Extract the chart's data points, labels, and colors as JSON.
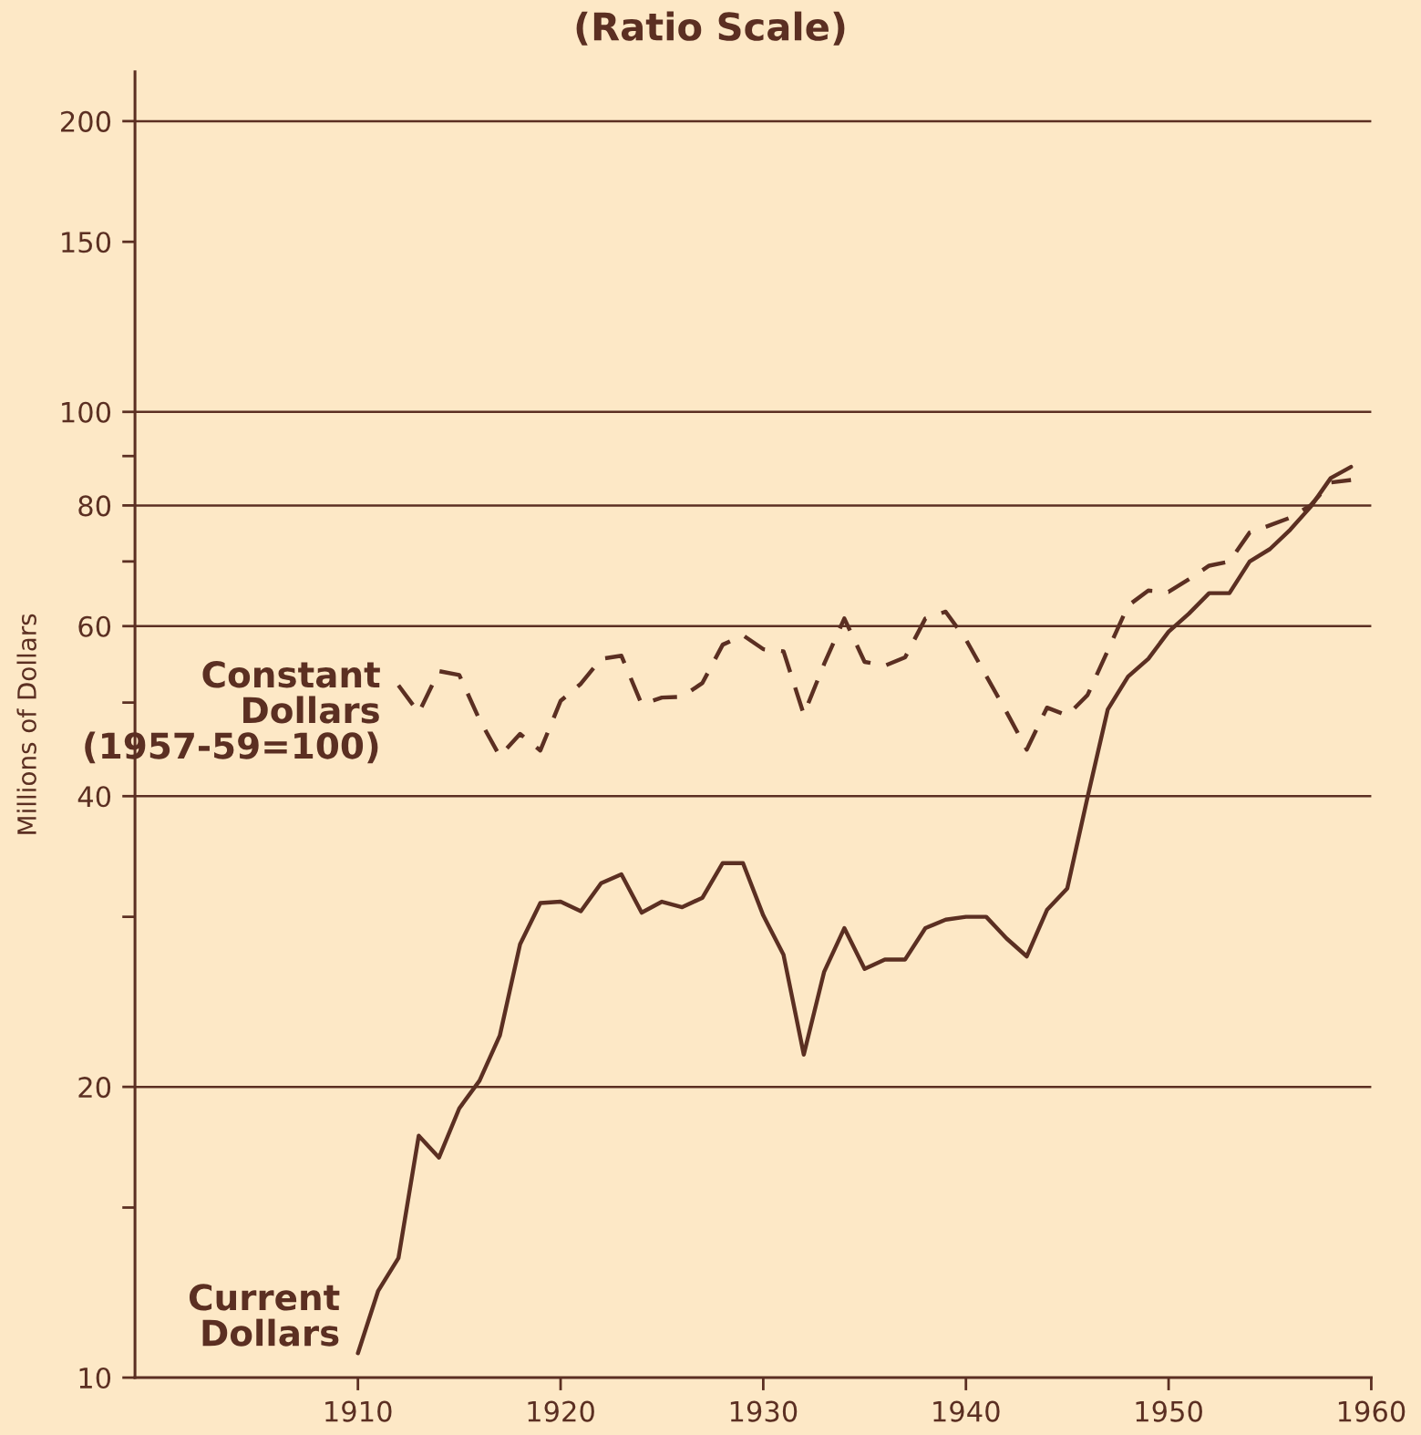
{
  "chart_data": {
    "type": "line",
    "title": "(Ratio Scale)",
    "ylabel": "Millions of Dollars",
    "log": "y",
    "xlim": [
      1899,
      1960
    ],
    "xticks": [
      1910,
      1920,
      1930,
      1940,
      1950,
      1960
    ],
    "ylim": [
      10,
      225
    ],
    "yticks": [
      10,
      {
        "value": 15,
        "label": null
      },
      20,
      {
        "value": 30,
        "label": null
      },
      40,
      {
        "value": 50,
        "label": null
      },
      60,
      {
        "value": 70,
        "label": null
      },
      80,
      {
        "value": 90,
        "label": null
      },
      100,
      150,
      200
    ],
    "ref_lines": [
      {
        "axis": "y",
        "value": 20,
        "color": "#5b2f22"
      },
      {
        "axis": "y",
        "value": 40,
        "color": "#5b2f22"
      },
      {
        "axis": "y",
        "value": 60,
        "color": "#5b2f22"
      },
      {
        "axis": "y",
        "value": 80,
        "color": "#5b2f22"
      },
      {
        "axis": "y",
        "value": 100,
        "color": "#5b2f22"
      },
      {
        "axis": "y",
        "value": 200,
        "color": "#5b2f22"
      }
    ],
    "grid": false,
    "legend": false,
    "marker": "none",
    "series": [
      {
        "name": "Constant\nDollars\n(1957-59=100)",
        "color": "#5b2f22",
        "line_style": "dashed",
        "x": [
          1912,
          1913,
          1914,
          1915,
          1916,
          1917,
          1918,
          1919,
          1920,
          1921,
          1922,
          1923,
          1924,
          1925,
          1926,
          1927,
          1928,
          1929,
          1930,
          1931,
          1932,
          1933,
          1934,
          1935,
          1936,
          1937,
          1938,
          1939,
          1940,
          1941,
          1942,
          1943,
          1944,
          1945,
          1946,
          1947,
          1948,
          1949,
          1950,
          1951,
          1952,
          1953,
          1954,
          1955,
          1956,
          1957,
          1958,
          1959
        ],
        "values": [
          52.1,
          48.8,
          53.9,
          53.4,
          48.0,
          44.0,
          46.4,
          44.6,
          50.2,
          52.3,
          55.5,
          55.9,
          49.8,
          50.6,
          50.7,
          52.4,
          57.4,
          58.7,
          56.8,
          56.5,
          48.6,
          54.8,
          61.1,
          55.1,
          54.6,
          55.7,
          61.1,
          62.1,
          58.1,
          53.3,
          48.9,
          44.7,
          49.4,
          48.5,
          50.9,
          56.6,
          63.0,
          65.3,
          65.1,
          67.1,
          69.3,
          70.0,
          75.0,
          76.3,
          77.7,
          80.0,
          84.5,
          85.0
        ]
      },
      {
        "name": "Current\nDollars",
        "color": "#5b2f22",
        "line_style": "solid",
        "x": [
          1910,
          1911,
          1912,
          1913,
          1914,
          1915,
          1916,
          1917,
          1918,
          1919,
          1920,
          1921,
          1922,
          1923,
          1924,
          1925,
          1926,
          1927,
          1928,
          1929,
          1930,
          1931,
          1932,
          1933,
          1934,
          1935,
          1936,
          1937,
          1938,
          1939,
          1940,
          1941,
          1942,
          1943,
          1944,
          1945,
          1946,
          1947,
          1948,
          1949,
          1950,
          1951,
          1952,
          1953,
          1954,
          1955,
          1956,
          1957,
          1958,
          1959
        ],
        "values": [
          10.6,
          12.3,
          13.3,
          17.8,
          16.9,
          19.0,
          20.3,
          22.6,
          28.1,
          31.0,
          31.1,
          30.4,
          32.5,
          33.2,
          30.3,
          31.1,
          30.7,
          31.4,
          34.1,
          34.1,
          30.1,
          27.4,
          21.6,
          26.3,
          29.2,
          26.5,
          27.1,
          27.1,
          29.2,
          29.8,
          30.0,
          30.0,
          28.5,
          27.3,
          30.5,
          32.1,
          39.9,
          49.2,
          53.2,
          55.5,
          59.2,
          61.8,
          64.9,
          64.9,
          70.0,
          72.1,
          75.5,
          79.7,
          85.4,
          87.7
        ]
      }
    ]
  }
}
